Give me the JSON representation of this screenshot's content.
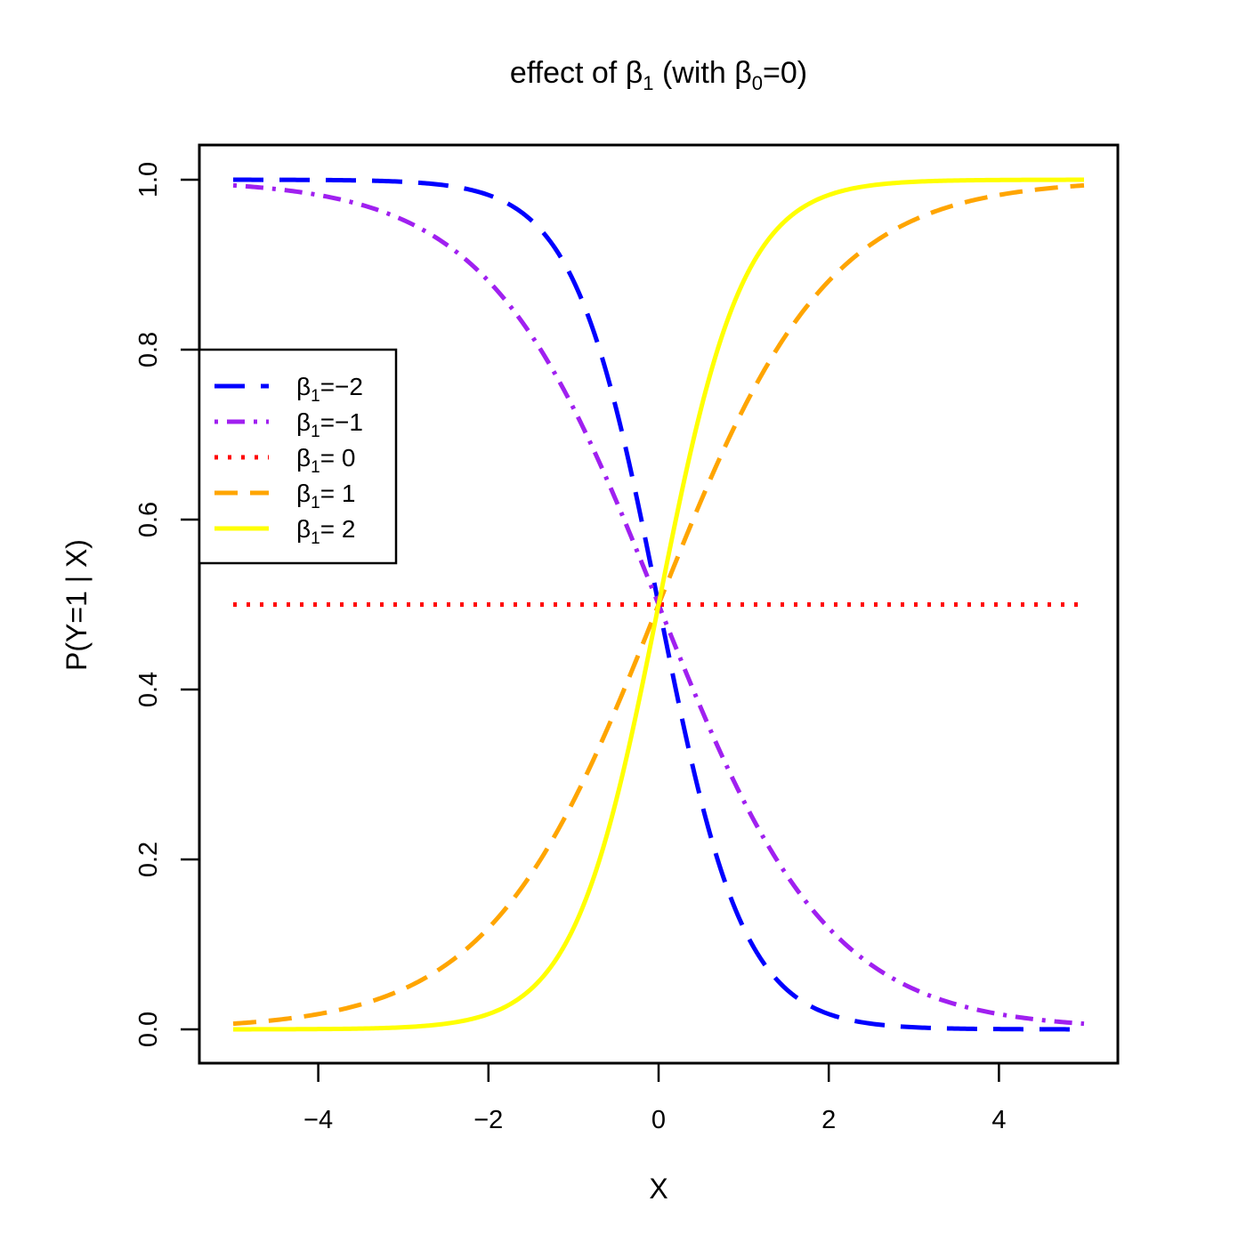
{
  "chart_data": {
    "type": "line",
    "title_main": "effect of β",
    "title_sub1": "1",
    "title_mid": " (with β",
    "title_sub2": "0",
    "title_end": "=0)",
    "xlabel": "X",
    "ylabel": "P(Y=1 | X)",
    "xlim": [
      -5,
      5
    ],
    "ylim": [
      0,
      1
    ],
    "x_ticks": [
      -4,
      -2,
      0,
      2,
      4
    ],
    "x_tick_labels": [
      "−4",
      "−2",
      "0",
      "2",
      "4"
    ],
    "y_ticks": [
      0,
      0.2,
      0.4,
      0.6,
      0.8,
      1.0
    ],
    "y_tick_labels": [
      "0.0",
      "0.2",
      "0.4",
      "0.6",
      "0.8",
      "1.0"
    ],
    "grid": false,
    "legend_position": "left",
    "x": [
      -5,
      -4.5,
      -4,
      -3.5,
      -3,
      -2.5,
      -2,
      -1.5,
      -1,
      -0.5,
      0,
      0.5,
      1,
      1.5,
      2,
      2.5,
      3,
      3.5,
      4,
      4.5,
      5
    ],
    "series": [
      {
        "name": "β1=−2",
        "legend_main": "β",
        "legend_sub": "1",
        "legend_rest": "=−2",
        "beta1": -2,
        "color": "#0000ff",
        "dash": "34 18",
        "width": 5,
        "values": [
          1.0,
          0.9999,
          0.9997,
          0.9991,
          0.9975,
          0.9933,
          0.982,
          0.9526,
          0.8808,
          0.7311,
          0.5,
          0.2689,
          0.1192,
          0.0474,
          0.018,
          0.0067,
          0.0025,
          0.0009,
          0.0003,
          0.0001,
          0.0
        ]
      },
      {
        "name": "β1=−1",
        "legend_main": "β",
        "legend_sub": "1",
        "legend_rest": "=−1",
        "beta1": -1,
        "color": "#a020f0",
        "dash": "4 10 20 10",
        "width": 5,
        "values": [
          0.9933,
          0.989,
          0.982,
          0.9707,
          0.9526,
          0.9241,
          0.8808,
          0.8176,
          0.7311,
          0.6225,
          0.5,
          0.3775,
          0.2689,
          0.1824,
          0.1192,
          0.0759,
          0.0474,
          0.0293,
          0.018,
          0.011,
          0.0067
        ]
      },
      {
        "name": "β1= 0",
        "legend_main": "β",
        "legend_sub": "1",
        "legend_rest": "= 0",
        "beta1": 0,
        "color": "#ff0000",
        "dash": "4 11",
        "width": 5,
        "values": [
          0.5,
          0.5,
          0.5,
          0.5,
          0.5,
          0.5,
          0.5,
          0.5,
          0.5,
          0.5,
          0.5,
          0.5,
          0.5,
          0.5,
          0.5,
          0.5,
          0.5,
          0.5,
          0.5,
          0.5,
          0.5
        ]
      },
      {
        "name": "β1= 1",
        "legend_main": "β",
        "legend_sub": "1",
        "legend_rest": "= 1",
        "beta1": 1,
        "color": "#ffa500",
        "dash": "26 14",
        "width": 5,
        "values": [
          0.0067,
          0.011,
          0.018,
          0.0293,
          0.0474,
          0.0759,
          0.1192,
          0.1824,
          0.2689,
          0.3775,
          0.5,
          0.6225,
          0.7311,
          0.8176,
          0.8808,
          0.9241,
          0.9526,
          0.9707,
          0.982,
          0.989,
          0.9933
        ]
      },
      {
        "name": "β1= 2",
        "legend_main": "β",
        "legend_sub": "1",
        "legend_rest": "= 2",
        "beta1": 2,
        "color": "#ffff00",
        "dash": "",
        "width": 5,
        "values": [
          0.0,
          0.0001,
          0.0003,
          0.0009,
          0.0025,
          0.0067,
          0.018,
          0.0474,
          0.1192,
          0.2689,
          0.5,
          0.7311,
          0.8808,
          0.9526,
          0.982,
          0.9933,
          0.9975,
          0.9991,
          0.9997,
          0.9999,
          1.0
        ]
      }
    ]
  }
}
